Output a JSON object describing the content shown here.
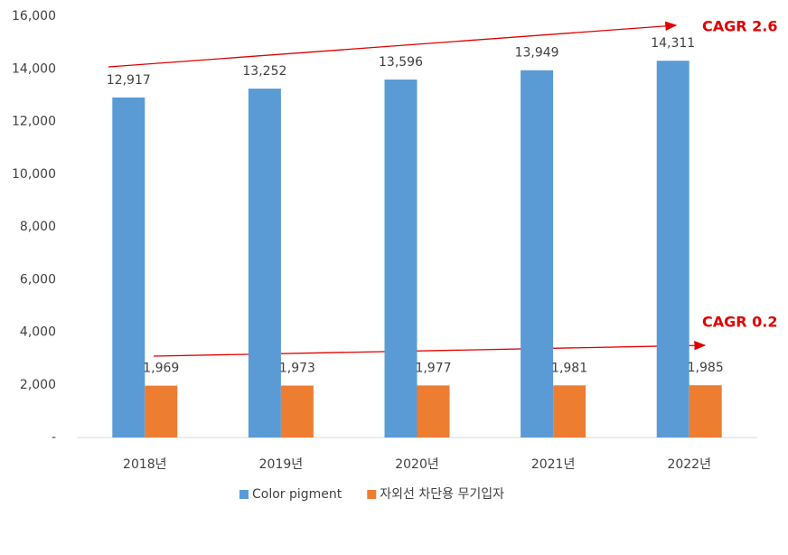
{
  "chart_data": {
    "type": "bar",
    "categories": [
      "2018년",
      "2019년",
      "2020년",
      "2021년",
      "2022년"
    ],
    "series": [
      {
        "name": "Color pigment",
        "color": "#5b9bd5",
        "values": [
          12917,
          13252,
          13596,
          13949,
          14311
        ],
        "value_labels": [
          "12,917",
          "13,252",
          "13,596",
          "13,949",
          "14,311"
        ]
      },
      {
        "name": "자외선 차단용 무기입자",
        "color": "#ed7d31",
        "values": [
          1969,
          1973,
          1977,
          1981,
          1985
        ],
        "value_labels": [
          "1,969",
          "1,973",
          "1,977",
          "1,981",
          "1,985"
        ]
      }
    ],
    "ylim": [
      0,
      16000
    ],
    "yticks": [
      {
        "value": 0,
        "label": "-"
      },
      {
        "value": 2000,
        "label": "2,000"
      },
      {
        "value": 4000,
        "label": "4,000"
      },
      {
        "value": 6000,
        "label": "6,000"
      },
      {
        "value": 8000,
        "label": "8,000"
      },
      {
        "value": 10000,
        "label": "10,000"
      },
      {
        "value": 12000,
        "label": "12,000"
      },
      {
        "value": 14000,
        "label": "14,000"
      },
      {
        "value": 16000,
        "label": "16,000"
      }
    ],
    "grid": false,
    "legend": "bottom",
    "annotations": [
      "CAGR 2.6",
      "CAGR 0.2"
    ]
  }
}
